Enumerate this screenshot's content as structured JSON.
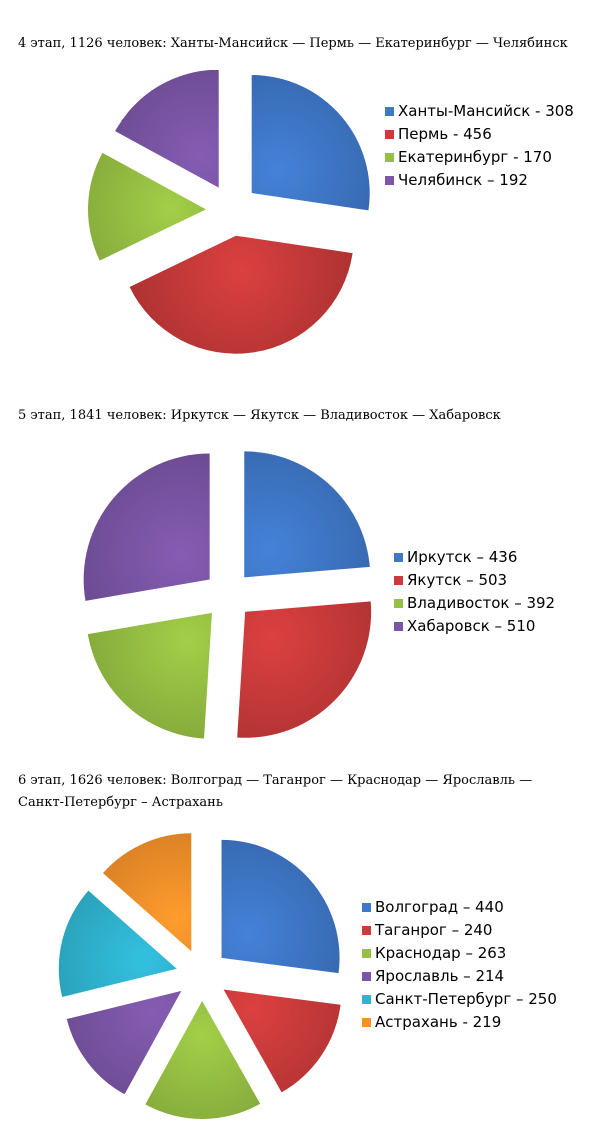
{
  "chart_data": [
    {
      "type": "pie",
      "title": "4 этап, 1126 человек: Ханты-Мансийск — Пермь — Екатеринбург — Челябинск",
      "categories": [
        "Ханты-Мансийск",
        "Пермь",
        "Екатеринбург",
        "Челябинск"
      ],
      "values": [
        308,
        456,
        170,
        192
      ],
      "legend_labels": [
        "Ханты-Мансийск - 308",
        "Пермь - 456",
        "Екатеринбург - 170",
        "Челябинск – 192"
      ],
      "colors": [
        "#3F78C9",
        "#CC3B3B",
        "#96C043",
        "#7B55A6"
      ],
      "exploded": true,
      "legend": "right"
    },
    {
      "type": "pie",
      "title": "5 этап, 1841 человек: Иркутск — Якутск — Владивосток — Хабаровск",
      "categories": [
        "Иркутск",
        "Якутск",
        "Владивосток",
        "Хабаровск"
      ],
      "values": [
        436,
        503,
        392,
        510
      ],
      "legend_labels": [
        "Иркутск – 436",
        "Якутск – 503",
        "Владивосток – 392",
        "Хабаровск – 510"
      ],
      "colors": [
        "#3F78C9",
        "#CC3B3B",
        "#96C043",
        "#7B55A6"
      ],
      "exploded": true,
      "legend": "right"
    },
    {
      "type": "pie",
      "title": "6 этап, 1626 человек: Волгоград — Таганрог — Краснодар — Ярославль — Санкт-Петербург – Астрахань",
      "categories": [
        "Волгоград",
        "Таганрог",
        "Краснодар",
        "Ярославль",
        "Санкт-Петербург",
        "Астрахань"
      ],
      "values": [
        440,
        240,
        263,
        214,
        250,
        219
      ],
      "legend_labels": [
        "Волгоград – 440",
        "Таганрог – 240",
        "Краснодар – 263",
        "Ярославль – 214",
        "Санкт-Петербург – 250",
        "Астрахань - 219"
      ],
      "colors": [
        "#3F78C9",
        "#CC3B3B",
        "#96C043",
        "#7B55A6",
        "#2FB3CF",
        "#F6902A"
      ],
      "exploded": true,
      "legend": "right"
    }
  ]
}
